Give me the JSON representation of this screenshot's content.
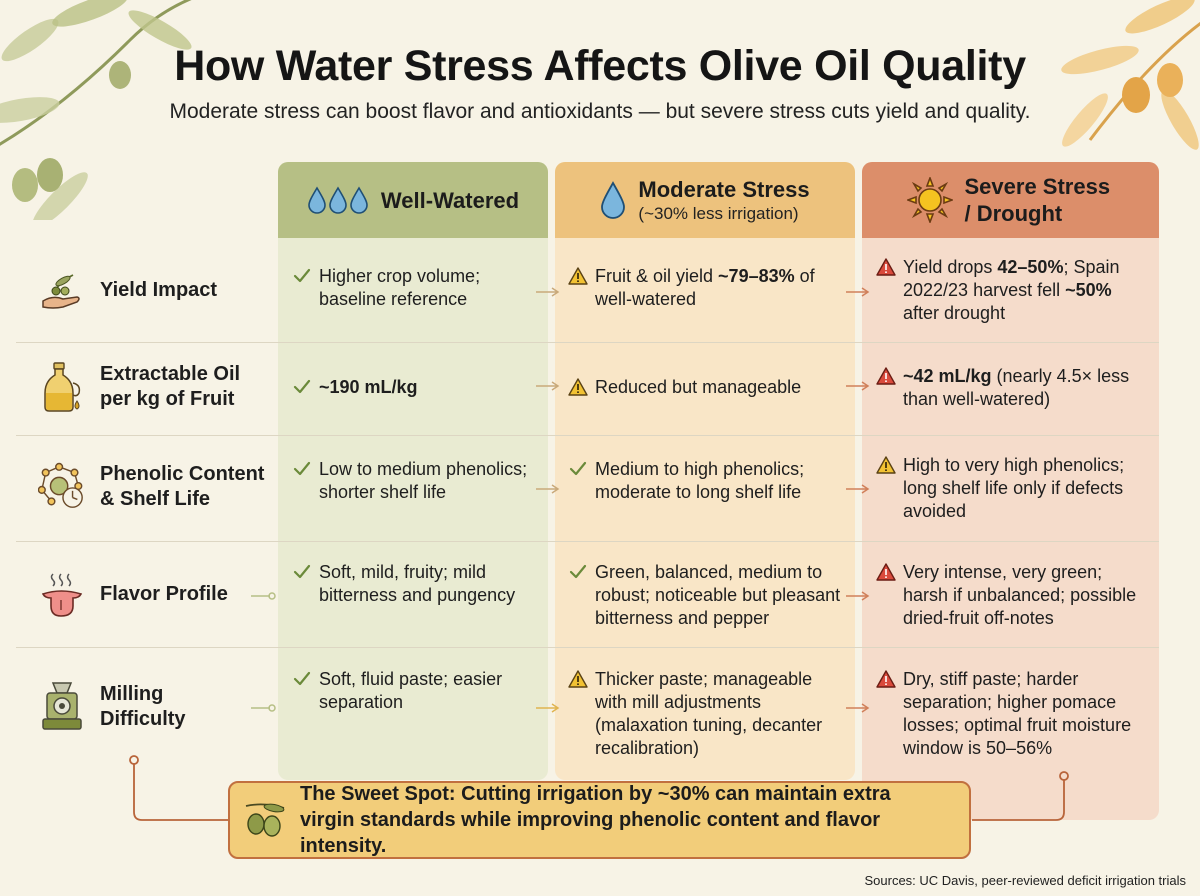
{
  "title": "How Water Stress Affects Olive Oil Quality",
  "subtitle": "Moderate stress can boost flavor and antioxidants — but severe stress cuts yield and quality.",
  "columns": [
    {
      "title": "Well-Watered",
      "subtitle": "",
      "icon": "water-drops-icon",
      "color": "#b6bf85"
    },
    {
      "title": "Moderate Stress",
      "subtitle": "(~30% less irrigation)",
      "icon": "water-drop-icon",
      "color": "#edc27d"
    },
    {
      "title": "Severe Stress / Drought",
      "subtitle": "",
      "icon": "sun-icon",
      "color": "#dc8e6a"
    }
  ],
  "rows": [
    {
      "label": "Yield Impact",
      "icon": "olive-branch-hand-icon",
      "cells": [
        {
          "status": "check",
          "parts": [
            {
              "t": "Higher crop volume; baseline reference",
              "b": false
            }
          ]
        },
        {
          "status": "warning",
          "parts": [
            {
              "t": "Fruit & oil yield ",
              "b": false
            },
            {
              "t": "~79–83%",
              "b": true
            },
            {
              "t": " of well-watered",
              "b": false
            }
          ]
        },
        {
          "status": "danger",
          "parts": [
            {
              "t": "Yield drops ",
              "b": false
            },
            {
              "t": "42–50%",
              "b": true
            },
            {
              "t": "; Spain 2022/23 harvest fell ",
              "b": false
            },
            {
              "t": "~50%",
              "b": true
            },
            {
              "t": " after drought",
              "b": false
            }
          ]
        }
      ]
    },
    {
      "label": "Extractable Oil per kg of Fruit",
      "icon": "oil-bottle-icon",
      "cells": [
        {
          "status": "check",
          "parts": [
            {
              "t": "~190 mL/kg",
              "b": true
            }
          ]
        },
        {
          "status": "warning",
          "parts": [
            {
              "t": "Reduced but manageable",
              "b": false
            }
          ]
        },
        {
          "status": "danger",
          "parts": [
            {
              "t": "~42 mL/kg",
              "b": true
            },
            {
              "t": " (nearly 4.5× less than well-watered)",
              "b": false
            }
          ]
        }
      ]
    },
    {
      "label": "Phenolic Content & Shelf Life",
      "icon": "molecule-clock-icon",
      "cells": [
        {
          "status": "check",
          "parts": [
            {
              "t": "Low to medium phenolics; shorter shelf life",
              "b": false
            }
          ]
        },
        {
          "status": "check",
          "parts": [
            {
              "t": "Medium to high phenolics; moderate to long shelf life",
              "b": false
            }
          ]
        },
        {
          "status": "warning",
          "parts": [
            {
              "t": "High to very high phenolics; long shelf life only if defects avoided",
              "b": false
            }
          ]
        }
      ]
    },
    {
      "label": "Flavor Profile",
      "icon": "tongue-icon",
      "cells": [
        {
          "status": "check",
          "parts": [
            {
              "t": "Soft, mild, fruity; mild bitterness and pungency",
              "b": false
            }
          ]
        },
        {
          "status": "check",
          "parts": [
            {
              "t": "Green, balanced, medium to robust; noticeable but pleasant bitterness and pepper",
              "b": false
            }
          ]
        },
        {
          "status": "danger",
          "parts": [
            {
              "t": "Very intense, very green; harsh if unbalanced; possible dried-fruit off-notes",
              "b": false
            }
          ]
        }
      ]
    },
    {
      "label": "Milling Difficulty",
      "icon": "olive-mill-icon",
      "cells": [
        {
          "status": "check",
          "parts": [
            {
              "t": "Soft, fluid paste; easier separation",
              "b": false
            }
          ]
        },
        {
          "status": "warning",
          "parts": [
            {
              "t": "Thicker paste; manageable with mill adjustments (malaxation tuning, decanter recalibration)",
              "b": false
            }
          ]
        },
        {
          "status": "danger",
          "parts": [
            {
              "t": "Dry, stiff paste; harder separation; higher pomace losses; optimal fruit moisture window is 50–56%",
              "b": false
            }
          ]
        }
      ]
    }
  ],
  "callout": {
    "text": "The Sweet Spot: Cutting irrigation by ~30% can maintain extra virgin standards while improving phenolic content and flavor intensity.",
    "icon": "olive-icon"
  },
  "sources": "Sources: UC Davis, peer-reviewed deficit irrigation trials"
}
